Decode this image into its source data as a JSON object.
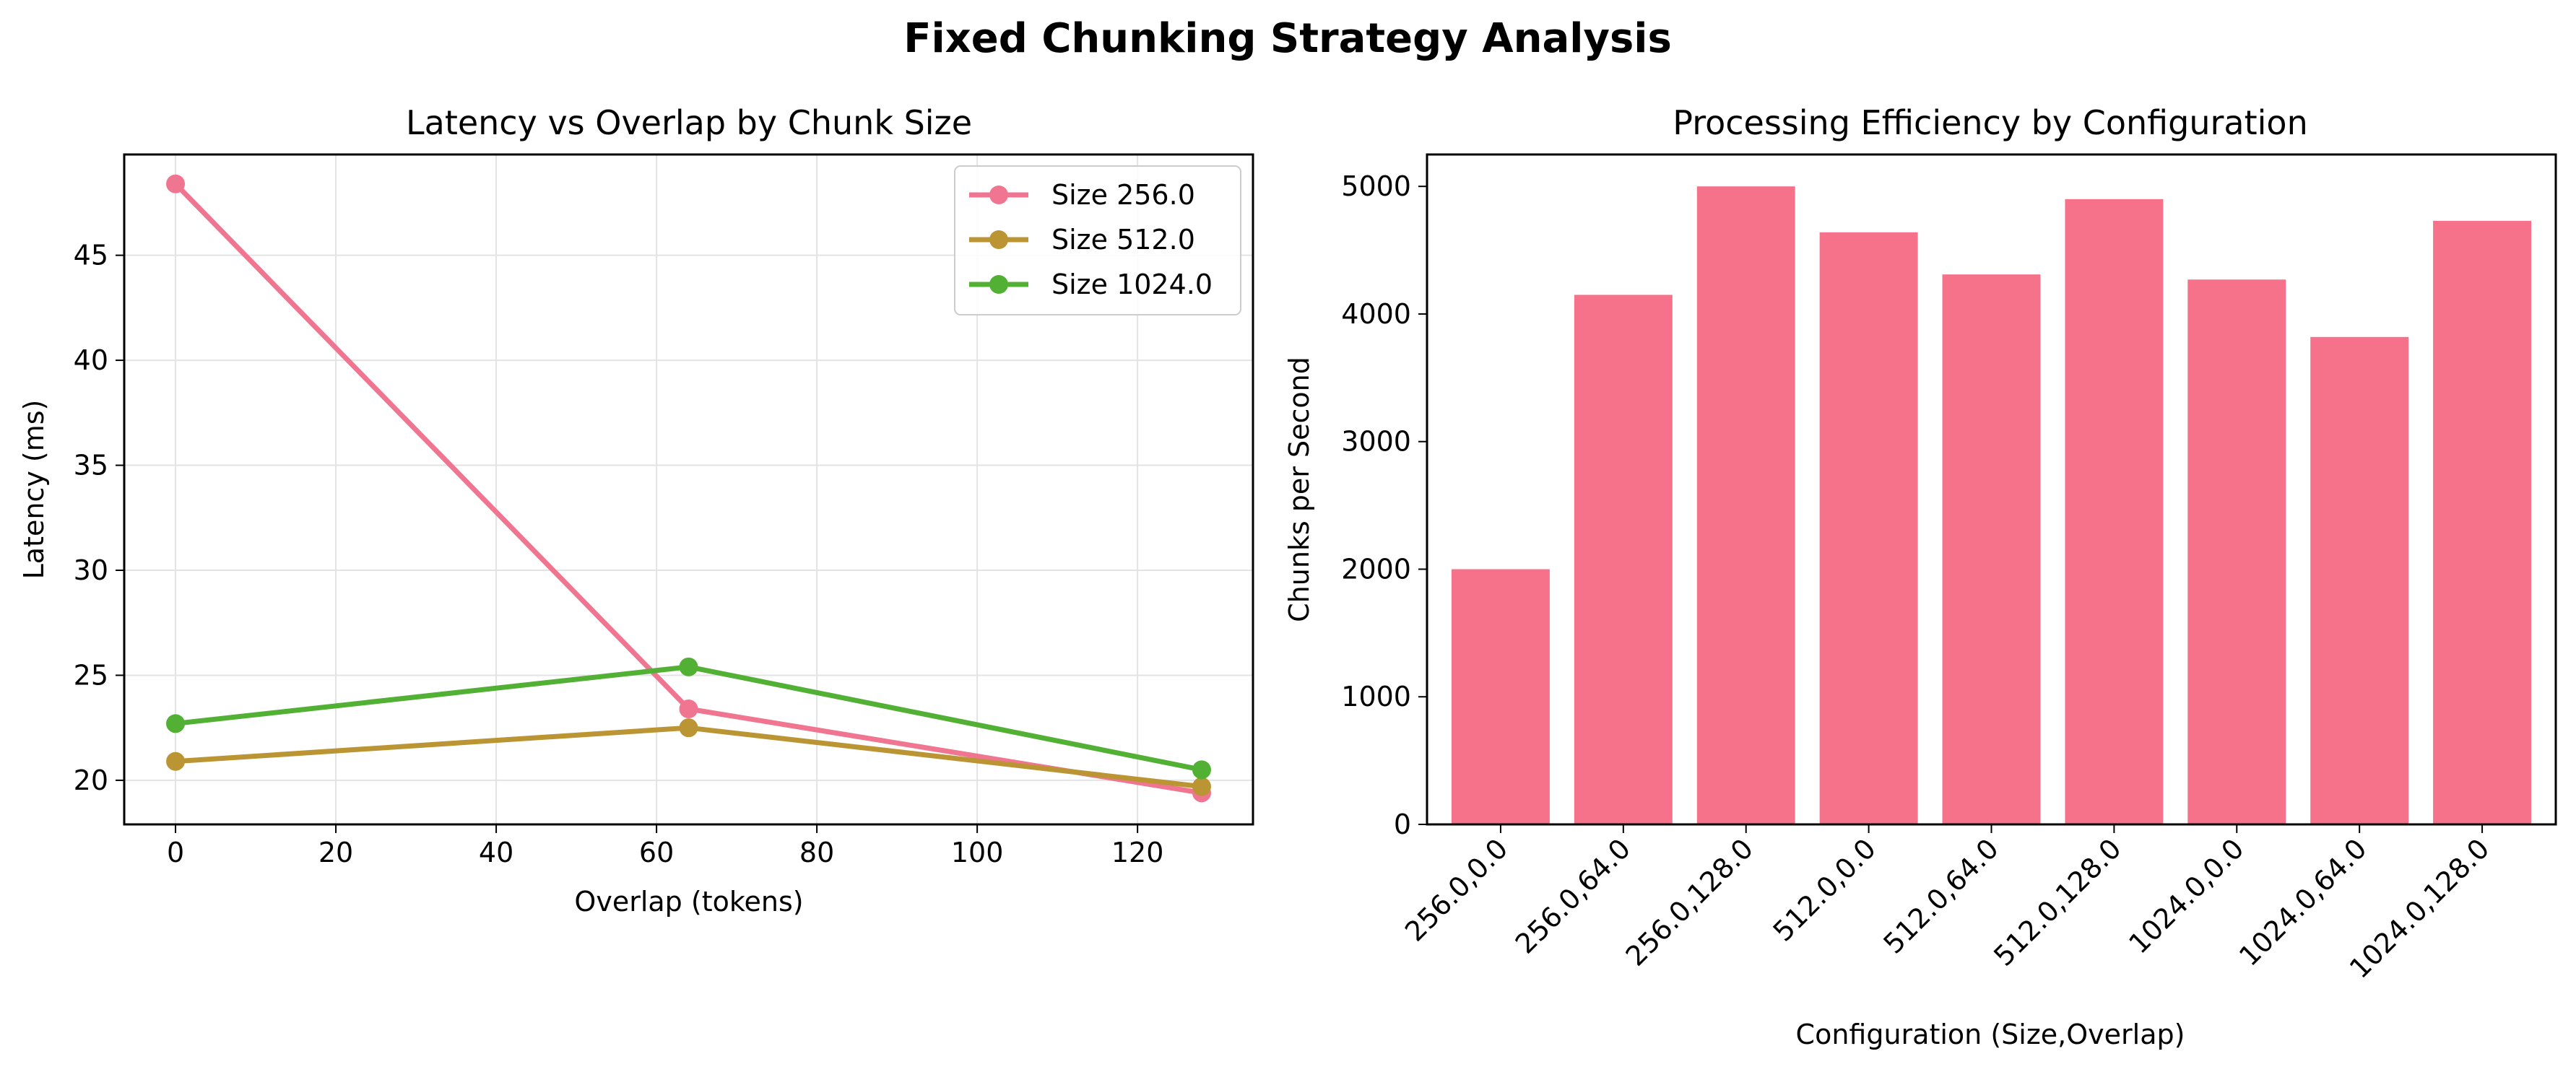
{
  "suptitle": "Fixed Chunking Strategy Analysis",
  "chart_data": [
    {
      "type": "line",
      "title": "Latency vs Overlap by Chunk Size",
      "xlabel": "Overlap (tokens)",
      "ylabel": "Latency (ms)",
      "x": [
        0,
        64,
        128
      ],
      "xlim": [
        -6.4,
        134.4
      ],
      "ylim": [
        17.9,
        49.8
      ],
      "xticks": [
        0,
        20,
        40,
        60,
        80,
        100,
        120
      ],
      "yticks": [
        20,
        25,
        30,
        35,
        40,
        45
      ],
      "grid": true,
      "legend_position": "top-right",
      "series": [
        {
          "name": "Size 256.0",
          "color": "#f07590",
          "values": [
            48.4,
            23.4,
            19.4
          ]
        },
        {
          "name": "Size 512.0",
          "color": "#bb9534",
          "values": [
            20.9,
            22.5,
            19.7
          ]
        },
        {
          "name": "Size 1024.0",
          "color": "#52b135",
          "values": [
            22.7,
            25.4,
            20.5
          ]
        }
      ]
    },
    {
      "type": "bar",
      "title": "Processing Efficiency by Configuration",
      "xlabel": "Configuration (Size,Overlap)",
      "ylabel": "Chunks per Second",
      "categories": [
        "256.0,0.0",
        "256.0,64.0",
        "256.0,128.0",
        "512.0,0.0",
        "512.0,64.0",
        "512.0,128.0",
        "1024.0,0.0",
        "1024.0,64.0",
        "1024.0,128.0"
      ],
      "values": [
        2000,
        4150,
        5000,
        4640,
        4310,
        4900,
        4270,
        3820,
        4730
      ],
      "ylim": [
        0,
        5250
      ],
      "yticks": [
        0,
        1000,
        2000,
        3000,
        4000,
        5000
      ],
      "grid": false,
      "color": "#f5728a"
    }
  ]
}
